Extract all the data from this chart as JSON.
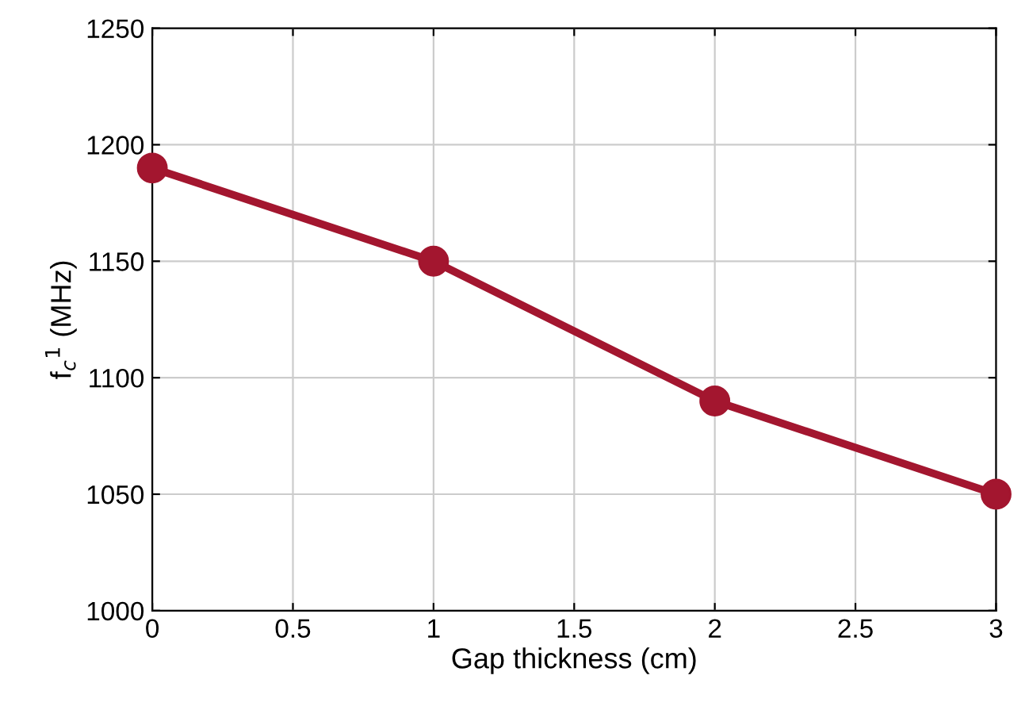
{
  "chart_data": {
    "type": "line",
    "xlabel": "Gap thickness (cm)",
    "ylabel": "f$_{c}$$^{1}$ (MHz)",
    "x": [
      0,
      1,
      2,
      3
    ],
    "series": [
      {
        "color": "#a3162f",
        "values": [
          1190,
          1150,
          1090,
          1050
        ]
      }
    ],
    "xlim": [
      0,
      3
    ],
    "ylim": [
      1000,
      1250
    ],
    "xticks": [
      0,
      0.5,
      1,
      1.5,
      2,
      2.5,
      3
    ],
    "yticks": [
      1000,
      1050,
      1100,
      1150,
      1200,
      1250
    ],
    "grid": true,
    "marker": "circle",
    "line_style": "solid"
  }
}
